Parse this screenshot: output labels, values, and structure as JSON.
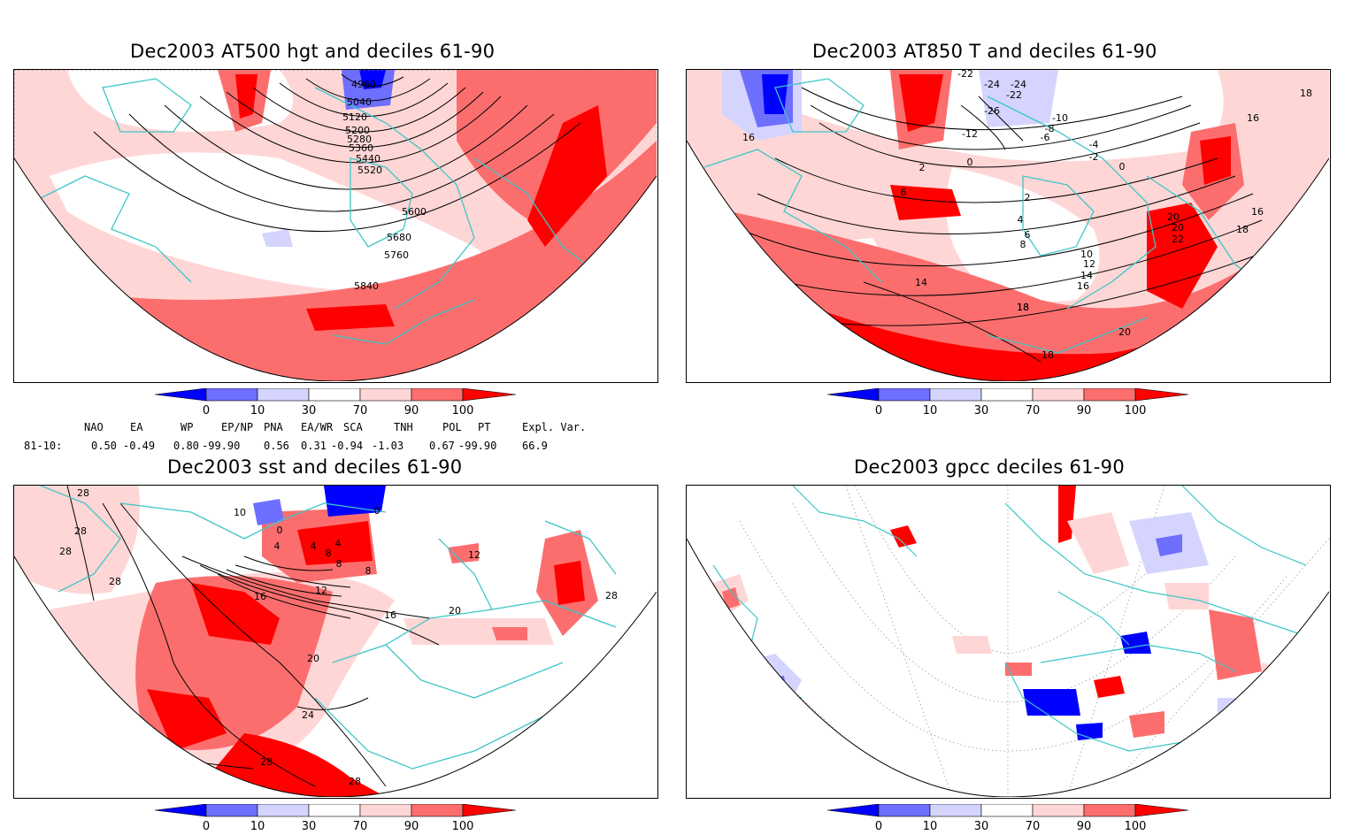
{
  "colors": {
    "dark_blue": "#0000ff",
    "mid_blue": "#6e6eff",
    "light_blue": "#d4d4ff",
    "light_red": "#ffd6d6",
    "mid_red": "#fc6e6e",
    "dark_red": "#ff0000",
    "coast": "#3ec6c6",
    "contour": "#000000"
  },
  "colorbar": {
    "ticks": [
      "0",
      "10",
      "30",
      "70",
      "90",
      "100"
    ]
  },
  "panels": [
    {
      "title": "Dec2003 AT500 hgt and deciles 61-90",
      "contour_labels": [
        "4960",
        "5040",
        "5120",
        "5200",
        "5280",
        "5360",
        "5440",
        "5520",
        "5600",
        "5680",
        "5760",
        "5840"
      ]
    },
    {
      "title": "Dec2003 AT850 T and deciles 61-90",
      "contour_labels": [
        "-22",
        "-24",
        "-24",
        "-22",
        "-26",
        "-10",
        "-8",
        "-6",
        "-12",
        "-4",
        "-2",
        "0",
        "2",
        "0",
        "16",
        "18",
        "16",
        "6",
        "2",
        "4",
        "6",
        "8",
        "10",
        "12",
        "14",
        "16",
        "18",
        "20",
        "22",
        "20",
        "18",
        "16",
        "14",
        "18",
        "20",
        "18"
      ]
    },
    {
      "title": "Dec2003 sst and deciles 61-90",
      "contour_labels": [
        "28",
        "28",
        "28",
        "28",
        "10",
        "0",
        "0",
        "4",
        "4",
        "8",
        "4",
        "8",
        "12",
        "8",
        "12",
        "16",
        "20",
        "16",
        "20",
        "24",
        "28",
        "28",
        "28"
      ]
    },
    {
      "title": "Dec2003 gpcc deciles 61-90",
      "contour_labels": []
    }
  ],
  "indices": {
    "header": [
      "NAO",
      "EA",
      "WP",
      "EP/NP",
      "PNA",
      "EA/WR",
      "SCA",
      "TNH",
      "POL",
      "PT",
      "Expl. Var."
    ],
    "row_label": "81-10:",
    "values": [
      "0.50",
      "-0.49",
      "0.80",
      "-99.90",
      "0.56",
      "0.31",
      "-0.94",
      "-1.03",
      "0.67",
      "-99.90",
      "66.9"
    ]
  }
}
